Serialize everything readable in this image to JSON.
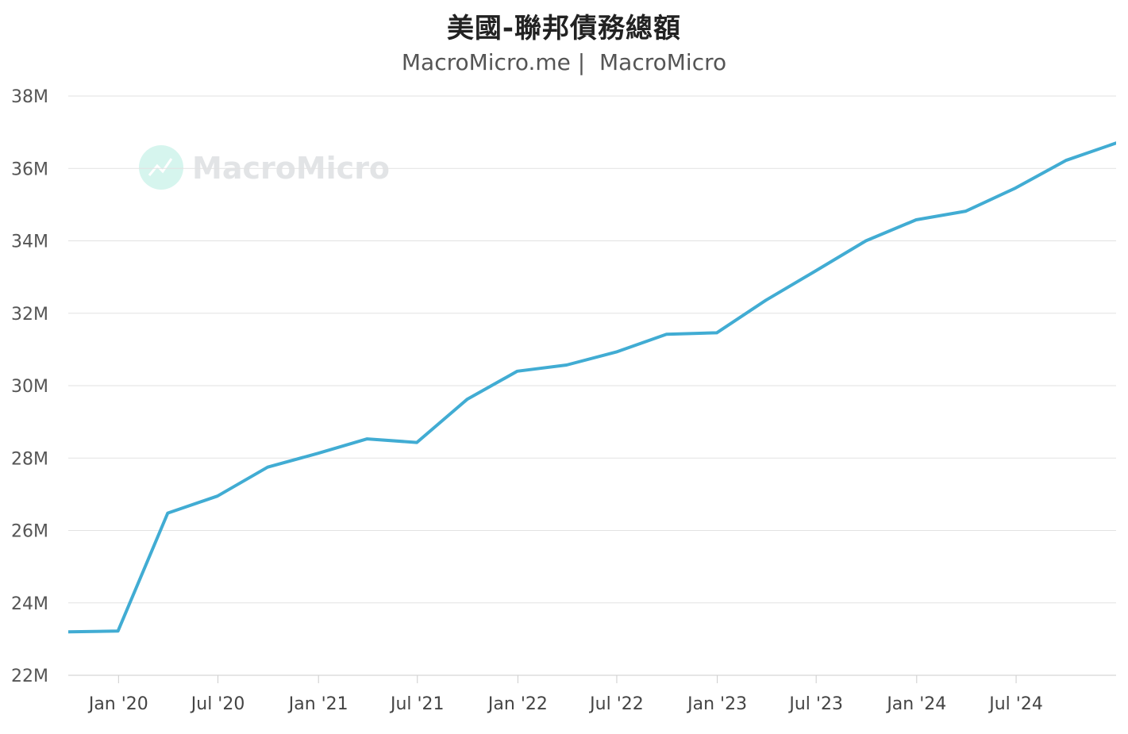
{
  "title": "美國-聯邦債務總額",
  "subtitle": "MacroMicro.me |  MacroMicro",
  "watermark": "MacroMicro",
  "colors": {
    "line": "#41acd3",
    "watermark_icon": "#d6f5ee"
  },
  "chart_data": {
    "type": "line",
    "title": "美國-聯邦債務總額",
    "ylim": [
      22,
      38
    ],
    "yticks": [
      "22M",
      "24M",
      "26M",
      "28M",
      "30M",
      "32M",
      "34M",
      "36M",
      "38M"
    ],
    "ytick_values": [
      22,
      24,
      26,
      28,
      30,
      32,
      34,
      36,
      38
    ],
    "xticks": [
      "Jan '20",
      "Jul '20",
      "Jan '21",
      "Jul '21",
      "Jan '22",
      "Jul '22",
      "Jan '23",
      "Jul '23",
      "Jan '24",
      "Jul '24"
    ],
    "xtick_dates": [
      "2020-01-01",
      "2020-07-01",
      "2021-01-01",
      "2021-07-01",
      "2022-01-01",
      "2022-07-01",
      "2023-01-01",
      "2023-07-01",
      "2024-01-01",
      "2024-07-01"
    ],
    "xlim": [
      "2019-10-01",
      "2024-12-31"
    ],
    "grid": true,
    "legend": "none",
    "series": [
      {
        "x": [
          "2019-10-01",
          "2019-12-31",
          "2020-03-31",
          "2020-06-30",
          "2020-09-30",
          "2020-12-31",
          "2021-03-31",
          "2021-06-30",
          "2021-09-30",
          "2021-12-31",
          "2022-03-31",
          "2022-06-30",
          "2022-09-30",
          "2022-12-31",
          "2023-03-31",
          "2023-06-30",
          "2023-09-30",
          "2023-12-31",
          "2024-03-31",
          "2024-06-30",
          "2024-09-30",
          "2024-12-31"
        ],
        "values": [
          23.2,
          23.22,
          26.48,
          26.95,
          27.75,
          28.13,
          28.53,
          28.43,
          29.62,
          30.4,
          30.57,
          30.93,
          31.42,
          31.46,
          32.36,
          33.17,
          34.0,
          34.58,
          34.82,
          35.46,
          36.22,
          36.7
        ]
      }
    ]
  }
}
